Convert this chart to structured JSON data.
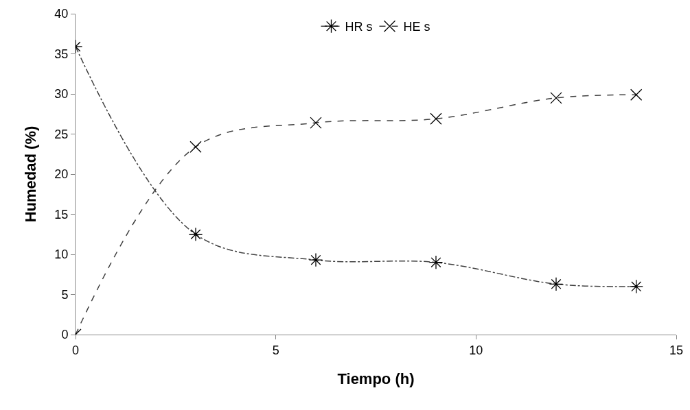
{
  "chart_data": {
    "type": "line",
    "xlabel": "Tiempo (h)",
    "ylabel": "Humedad (%)",
    "x": [
      0,
      3,
      6,
      9,
      12,
      14
    ],
    "series": [
      {
        "name": "HR s",
        "color": "#404040",
        "marker": "cross",
        "line_style": "dashdot",
        "values": [
          35.9,
          12.5,
          9.3,
          9.0,
          6.3,
          6.0
        ]
      },
      {
        "name": "HE s",
        "color": "#404040",
        "marker": "cross",
        "line_style": "dashed",
        "values": [
          0,
          23.4,
          26.4,
          26.9,
          29.5,
          29.9
        ]
      }
    ],
    "xlim": [
      0,
      15
    ],
    "xticks": [
      0,
      5,
      10,
      15
    ],
    "ylim": [
      0,
      40
    ],
    "yticks": [
      0,
      5,
      10,
      15,
      20,
      25,
      30,
      35,
      40
    ],
    "grid": false,
    "legend": "top"
  }
}
